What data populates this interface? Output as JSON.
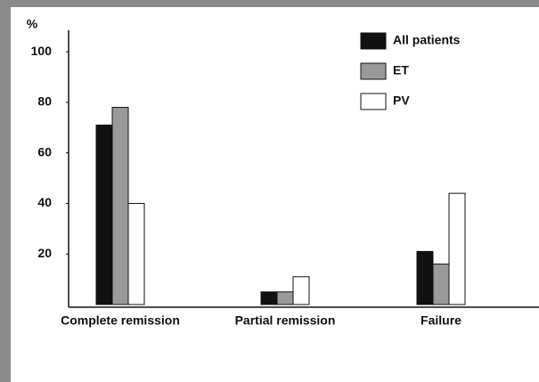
{
  "chart_data": {
    "type": "bar",
    "y_label": "%",
    "categories": [
      "Complete remission",
      "Partial remission",
      "Failure"
    ],
    "series": [
      {
        "name": "All patients",
        "color": "#111111",
        "values": [
          71,
          5,
          21
        ]
      },
      {
        "name": "ET",
        "color": "#9a9a9a",
        "values": [
          78,
          5,
          16
        ]
      },
      {
        "name": "PV",
        "color": "#ffffff",
        "values": [
          40,
          11,
          44
        ]
      }
    ],
    "ylim": [
      0,
      108.5
    ],
    "yticks": [
      20,
      40,
      60,
      80,
      100
    ],
    "legend": "upper right"
  }
}
